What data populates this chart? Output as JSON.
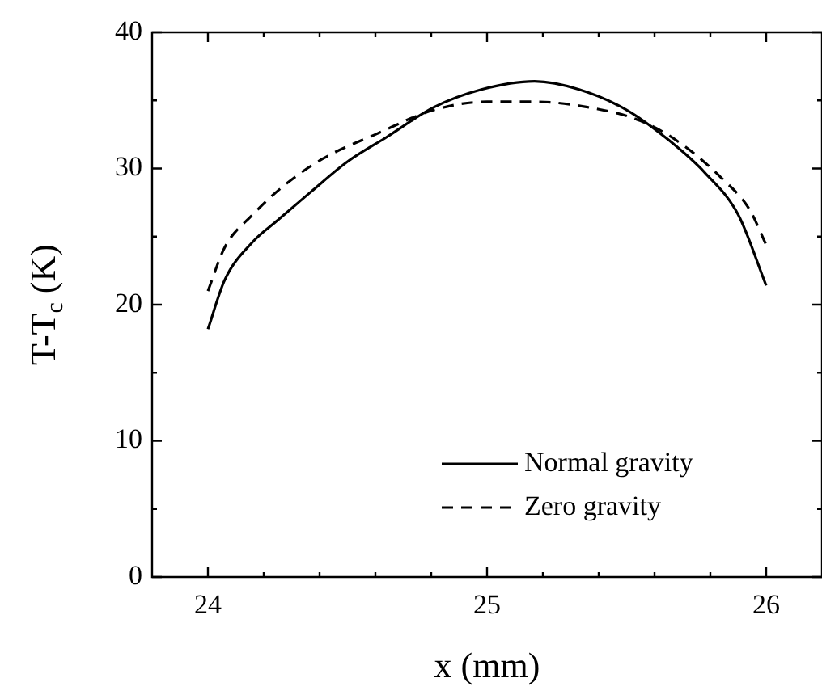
{
  "chart_data": {
    "type": "line",
    "xlabel": "x (mm)",
    "ylabel": "T-T$_{c}$ (K)",
    "xlim": [
      23.8,
      26.2
    ],
    "ylim": [
      0,
      40
    ],
    "xticks": [
      24,
      {
        "value": 24.2,
        "label": null
      },
      {
        "value": 24.4,
        "label": null
      },
      {
        "value": 24.6,
        "label": null
      },
      {
        "value": 24.8,
        "label": null
      },
      25,
      {
        "value": 25.2,
        "label": null
      },
      {
        "value": 25.4,
        "label": null
      },
      {
        "value": 25.6,
        "label": null
      },
      {
        "value": 25.8,
        "label": null
      },
      26
    ],
    "yticks": [
      0,
      {
        "value": 5,
        "label": null
      },
      10,
      {
        "value": 15,
        "label": null
      },
      20,
      {
        "value": 25,
        "label": null
      },
      30,
      {
        "value": 35,
        "label": null
      },
      40
    ],
    "legend": "bottom right",
    "marker": "none",
    "series": [
      {
        "name": "Normal gravity",
        "color": "#000000",
        "line_style": "solid",
        "x": [
          24,
          24.06,
          24.16,
          24.25,
          24.37,
          24.5,
          24.64,
          24.81,
          24.98,
          25.17,
          25.33,
          25.5,
          25.65,
          25.78,
          25.9,
          26
        ],
        "values": [
          18.2,
          21.8,
          24.6,
          26.2,
          28.3,
          30.5,
          32.3,
          34.5,
          35.8,
          36.4,
          35.8,
          34.3,
          32.1,
          29.7,
          26.6,
          21.4
        ]
      },
      {
        "name": "Zero gravity",
        "color": "#000000",
        "line_style": "dashed",
        "x": [
          24,
          24.06,
          24.16,
          24.27,
          24.41,
          24.6,
          24.81,
          25,
          25.17,
          25.36,
          25.55,
          25.69,
          25.84,
          25.94,
          26
        ],
        "values": [
          21,
          24.2,
          26.6,
          28.7,
          30.7,
          32.5,
          34.3,
          34.9,
          34.9,
          34.5,
          33.5,
          31.9,
          29.3,
          27,
          24.4
        ]
      }
    ]
  }
}
